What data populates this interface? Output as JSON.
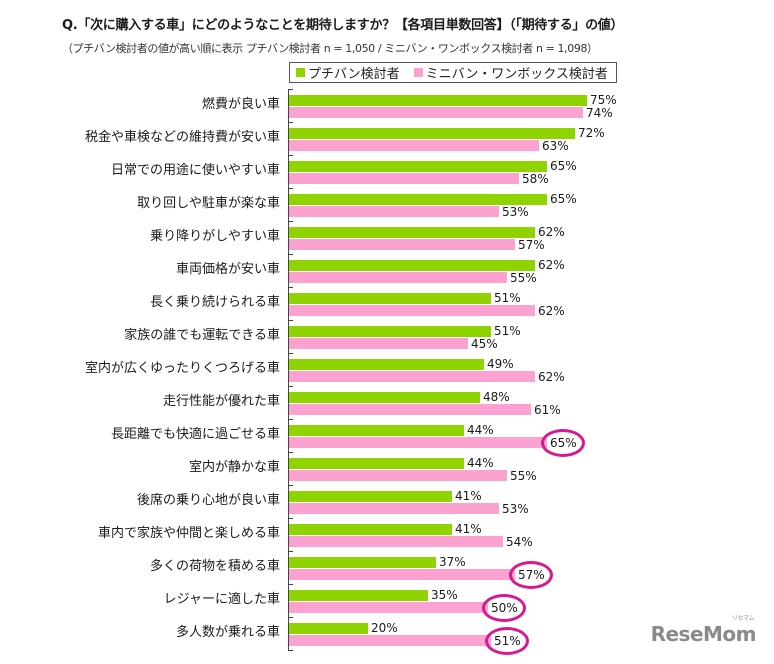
{
  "header": {
    "title": "Q.「次に購入する車」にどのようなことを期待しますか？【各項目単数回答】（「期待する」の値）",
    "subtitle": "（プチバン検討者の値が高い順に表示 プチバン検討者 n = 1,050 / ミニバン・ワンボックス検討者 n = 1,098）"
  },
  "legend": [
    {
      "label": "プチバン検討者",
      "color": "#8fd400"
    },
    {
      "label": "ミニバン・ワンボックス検討者",
      "color": "#fba2d0"
    }
  ],
  "colors": {
    "series1": "#8fd400",
    "series2": "#fba2d0",
    "highlight_circle": "#d6198f",
    "axis": "#444444"
  },
  "logo": {
    "text": "ReseMom",
    "sub": "リセマム"
  },
  "chart_data": {
    "type": "bar",
    "orientation": "horizontal",
    "title": "Q.「次に購入する車」にどのようなことを期待しますか？【各項目単数回答】（「期待する」の値）",
    "subtitle": "（プチバン検討者の値が高い順に表示 プチバン検討者 n = 1,050 / ミニバン・ワンボックス検討者 n = 1,098）",
    "xlabel": "",
    "ylabel": "",
    "unit": "%",
    "grid": false,
    "legend_position": "top",
    "categories": [
      "燃費が良い車",
      "税金や車検などの維持費が安い車",
      "日常での用途に使いやすい車",
      "取り回しや駐車が楽な車",
      "乗り降りがしやすい車",
      "車両価格が安い車",
      "長く乗り続けられる車",
      "家族の誰でも運転できる車",
      "室内が広くゆったりくつろげる車",
      "走行性能が優れた車",
      "長距離でも快適に過ごせる車",
      "室内が静かな車",
      "後席の乗り心地が良い車",
      "車内で家族や仲間と楽しめる車",
      "多くの荷物を積める車",
      "レジャーに適した車",
      "多人数が乗れる車"
    ],
    "series": [
      {
        "name": "プチバン検討者",
        "color": "#8fd400",
        "values": [
          75,
          72,
          65,
          65,
          62,
          62,
          51,
          51,
          49,
          48,
          44,
          44,
          41,
          41,
          37,
          35,
          20
        ]
      },
      {
        "name": "ミニバン・ワンボックス検討者",
        "color": "#fba2d0",
        "values": [
          74,
          63,
          58,
          53,
          57,
          55,
          62,
          45,
          62,
          61,
          65,
          55,
          53,
          54,
          57,
          50,
          51
        ]
      }
    ],
    "highlighted": [
      {
        "category": "長距離でも快適に過ごせる車",
        "series": "ミニバン・ワンボックス検討者",
        "value": 65
      },
      {
        "category": "多くの荷物を積める車",
        "series": "ミニバン・ワンボックス検討者",
        "value": 57
      },
      {
        "category": "レジャーに適した車",
        "series": "ミニバン・ワンボックス検討者",
        "value": 50
      },
      {
        "category": "多人数が乗れる車",
        "series": "ミニバン・ワンボックス検討者",
        "value": 51
      }
    ],
    "xlim": [
      0,
      80
    ]
  }
}
